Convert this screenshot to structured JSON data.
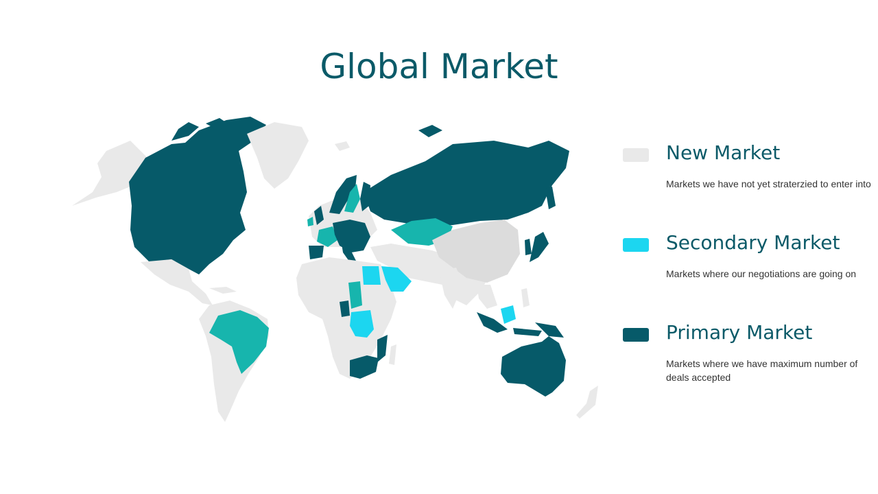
{
  "slide": {
    "title": "Global Market"
  },
  "colors": {
    "new": "#e9e9e9",
    "new_dark": "#dcdcdc",
    "secondary": "#1cd6f0",
    "secondary_teal": "#17b5ad",
    "primary": "#065a69"
  },
  "legend": [
    {
      "title": "New Market",
      "description": "Markets we have not yet straterzied to enter into",
      "color": "#e9e9e9"
    },
    {
      "title": "Secondary Market",
      "description": "Markets where our negotiations are going on",
      "color": "#1cd6f0"
    },
    {
      "title": "Primary Market",
      "description": "Markets where we have maximum number of deals accepted",
      "color": "#065a69"
    }
  ]
}
